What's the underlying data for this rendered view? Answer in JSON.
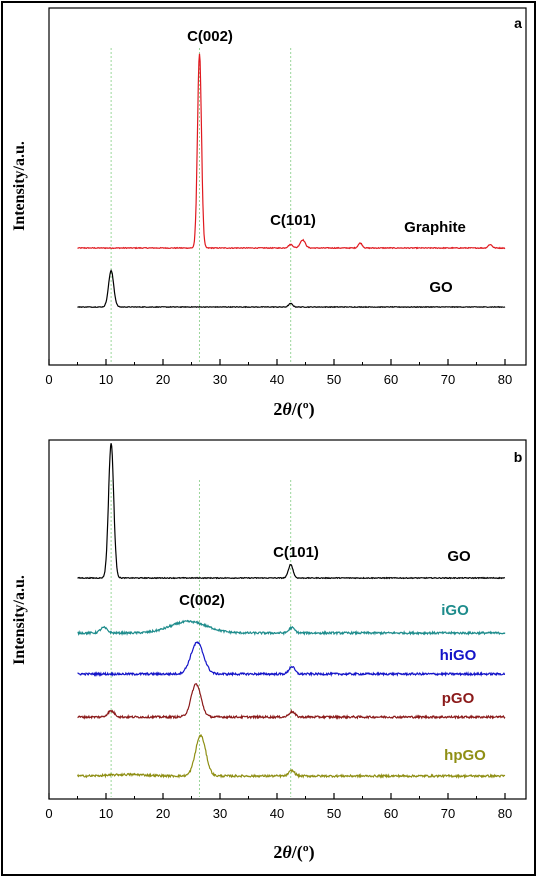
{
  "chart_data": [
    {
      "type": "line",
      "panel_label": "a",
      "ylabel": "Intensity/a.u.",
      "xlabel_prefix": "2",
      "xlabel_theta": "θ",
      "xlabel_suffix": "/(º)",
      "xlim": [
        0,
        80
      ],
      "xticks": [
        0,
        10,
        20,
        30,
        40,
        50,
        60,
        70,
        80
      ],
      "xticklabels": [
        "0",
        "10",
        "20",
        "30",
        "40",
        "50",
        "60",
        "70",
        "80"
      ],
      "grid": false,
      "series": [
        {
          "name": "Graphite",
          "color": "#e0191f",
          "baseline": 2.0,
          "noise": 0.015,
          "peaks": [
            {
              "center": 26.4,
              "height": 6.7,
              "width": 0.35
            },
            {
              "center": 42.4,
              "height": 0.12,
              "width": 0.4
            },
            {
              "center": 44.5,
              "height": 0.28,
              "width": 0.45
            },
            {
              "center": 54.6,
              "height": 0.17,
              "width": 0.35
            },
            {
              "center": 77.4,
              "height": 0.12,
              "width": 0.35
            }
          ]
        },
        {
          "name": "GO",
          "color": "#000000",
          "baseline": 0.0,
          "noise": 0.012,
          "peaks": [
            {
              "center": 10.9,
              "height": 1.25,
              "width": 0.45
            },
            {
              "center": 42.4,
              "height": 0.12,
              "width": 0.35
            }
          ]
        }
      ],
      "annotations": [
        "C(002)",
        "C(101)"
      ],
      "reference_lines": [
        10.9,
        26.4,
        42.4
      ],
      "reference_color": "#9ad69a"
    },
    {
      "type": "line",
      "panel_label": "b",
      "ylabel": "Intensity/a.u.",
      "xlabel_prefix": "2",
      "xlabel_theta": "θ",
      "xlabel_suffix": "/(º)",
      "xlim": [
        0,
        80
      ],
      "xticks": [
        0,
        10,
        20,
        30,
        40,
        50,
        60,
        70,
        80
      ],
      "xticklabels": [
        "0",
        "10",
        "20",
        "30",
        "40",
        "50",
        "60",
        "70",
        "80"
      ],
      "grid": false,
      "series": [
        {
          "name": "GO",
          "color": "#000000",
          "baseline": 4.05,
          "noise": 0.015,
          "peaks": [
            {
              "center": 10.9,
              "height": 4.5,
              "width": 0.45
            },
            {
              "center": 42.4,
              "height": 0.45,
              "width": 0.4
            }
          ]
        },
        {
          "name": "iGO",
          "color": "#1e8c8c",
          "baseline": 3.0,
          "noise": 0.035,
          "peaks": [
            {
              "center": 9.6,
              "height": 0.18,
              "width": 0.6
            },
            {
              "center": 24.5,
              "height": 0.38,
              "width": 3.2
            },
            {
              "center": 42.6,
              "height": 0.18,
              "width": 0.5
            }
          ]
        },
        {
          "name": "hiGO",
          "color": "#1414c8",
          "baseline": 2.0,
          "noise": 0.035,
          "peaks": [
            {
              "center": 26.0,
              "height": 1.05,
              "width": 1.1
            },
            {
              "center": 42.6,
              "height": 0.25,
              "width": 0.5
            }
          ]
        },
        {
          "name": "pGO",
          "color": "#8b1a1a",
          "baseline": 1.0,
          "noise": 0.035,
          "peaks": [
            {
              "center": 10.9,
              "height": 0.2,
              "width": 0.6
            },
            {
              "center": 25.8,
              "height": 1.1,
              "width": 0.85
            },
            {
              "center": 42.6,
              "height": 0.18,
              "width": 0.5
            }
          ]
        },
        {
          "name": "hpGO",
          "color": "#8f8f14",
          "baseline": 0.0,
          "noise": 0.035,
          "peaks": [
            {
              "center": 14.0,
              "height": 0.05,
              "width": 3.0
            },
            {
              "center": 26.6,
              "height": 1.35,
              "width": 0.9
            },
            {
              "center": 42.6,
              "height": 0.18,
              "width": 0.5
            }
          ]
        }
      ],
      "annotations": [
        "C(101)",
        "C(002)"
      ],
      "reference_lines": [
        10.9,
        26.4,
        42.4
      ],
      "reference_color": "#9ad69a"
    }
  ]
}
